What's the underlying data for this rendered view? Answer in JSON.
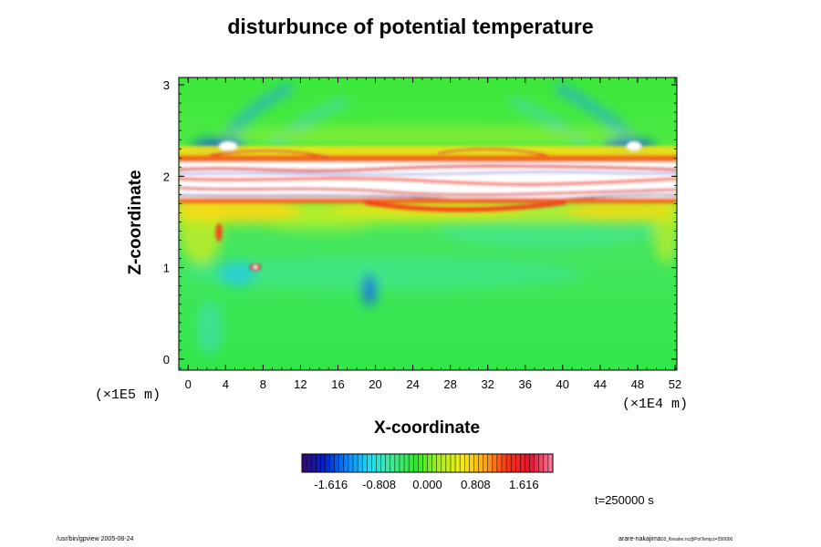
{
  "chart_data": {
    "type": "heatmap",
    "title": "disturbunce of potential temperature",
    "xlabel": "X-coordinate",
    "ylabel": "Z-coordinate",
    "x_scale_label": "(×1E4 m)",
    "y_scale_label": "(×1E5 m)",
    "xlim": [
      -1,
      52.2
    ],
    "ylim": [
      -0.12,
      3.08
    ],
    "x_ticks": [
      "0",
      "4",
      "8",
      "12",
      "16",
      "20",
      "24",
      "28",
      "32",
      "36",
      "40",
      "44",
      "48",
      "52"
    ],
    "y_ticks": [
      "0",
      "1",
      "2",
      "3"
    ],
    "colorbar": {
      "ticks": [
        "-1.616",
        "-0.808",
        "0.000",
        "0.808",
        "1.616"
      ],
      "range": [
        -2.1,
        2.1
      ],
      "colors": [
        "#3a0a6e",
        "#0022c8",
        "#0a88ff",
        "#20e0f0",
        "#44e890",
        "#2ee82a",
        "#a8ee20",
        "#f4ee10",
        "#ffa818",
        "#f83418",
        "#e01430",
        "#f880a0"
      ]
    },
    "time_label": "t=250000 s",
    "features": [
      {
        "type": "band",
        "z_range": [
          1.72,
          2.12
        ],
        "value": "saturated (above +2.1)",
        "note": "white/red turbulent layer"
      },
      {
        "type": "region",
        "z_range": [
          2.3,
          3.05
        ],
        "value": "near 0 with weak negative streaks"
      },
      {
        "type": "region",
        "z_range": [
          -0.1,
          1.6
        ],
        "value": "slightly negative to near 0"
      }
    ]
  },
  "footer": {
    "left": "/usr/bin/gpview 2005-08-24",
    "right_main": "arare-nakajima",
    "right_small": "03_Kessler.nc@PotTemp,t=250000"
  }
}
